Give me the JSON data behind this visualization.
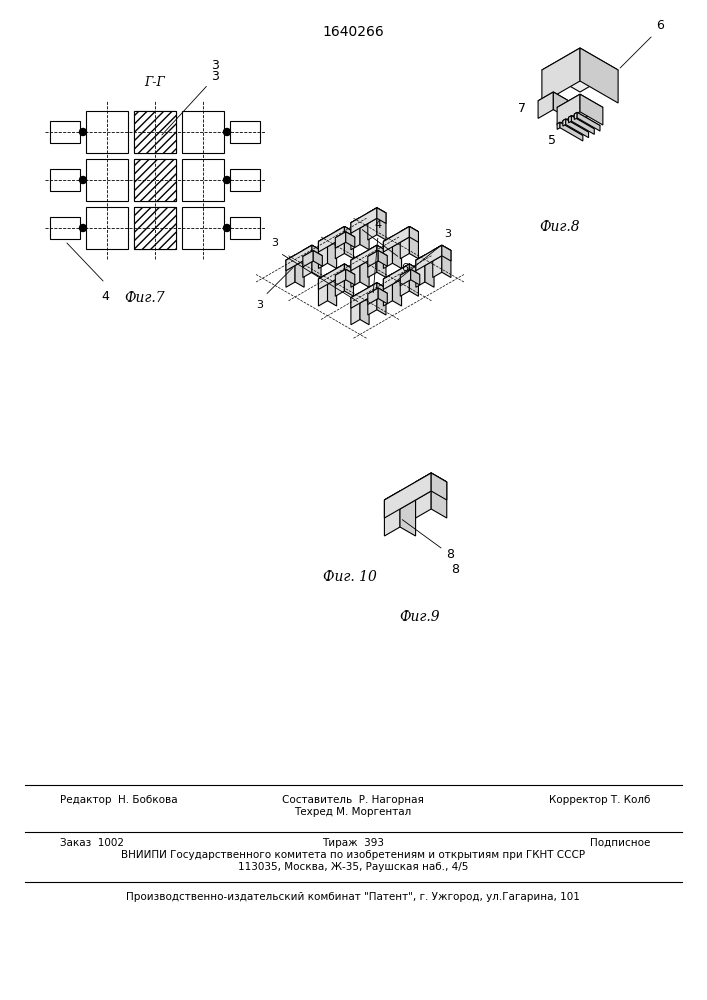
{
  "patent_number": "1640266",
  "background_color": "#ffffff",
  "line_color": "#000000",
  "hatch_color": "#000000",
  "fig_labels": [
    "Фиг.7",
    "Фиг.8",
    "Фиг.9",
    "Фиг.10"
  ],
  "section_label": "Г-Г",
  "numbers": [
    "3",
    "4",
    "5",
    "6",
    "7",
    "8"
  ],
  "footer_line1_left": "Редактор  Н. Бобкова",
  "footer_line1_mid": "Составитель  Р. Нагорная",
  "footer_line1_right": "Корректор Т. Колб",
  "footer_line2_left": "",
  "footer_line1b_mid": "Техред М. Моргентал",
  "footer_line3_left": "Заказ  1002",
  "footer_line3_mid": "Тираж  393",
  "footer_line3_right": "Подписное",
  "footer_line4": "ВНИИПИ Государственного комитета по изобретениям и открытиям при ГКНТ СССР",
  "footer_line5": "113035, Москва, Ж-35, Раушская наб., 4/5",
  "footer_line6": "Производственно-издательский комбинат \"Патент\", г. Ужгород, ул.Гагарина, 101"
}
